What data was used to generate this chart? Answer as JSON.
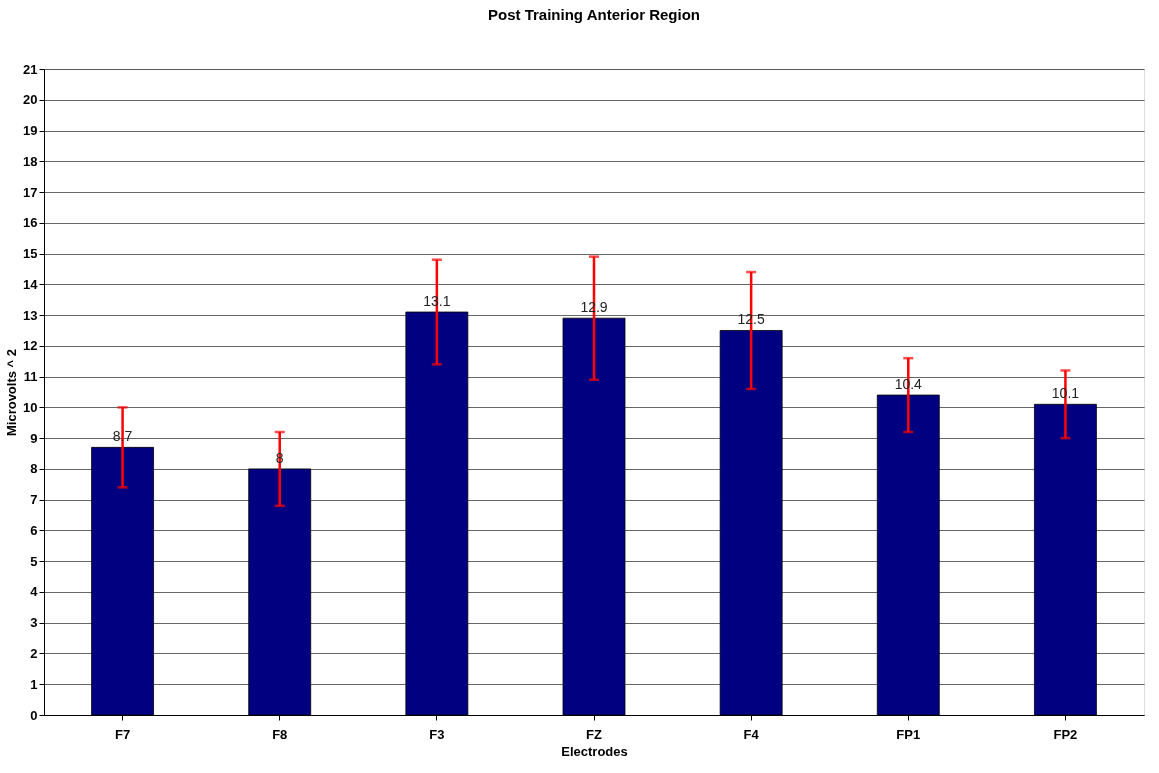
{
  "chart_data": {
    "type": "bar",
    "title": "Post Training Anterior Region",
    "xlabel": "Electrodes",
    "ylabel": "Microvolts ^ 2",
    "categories": [
      "F7",
      "F8",
      "F3",
      "FZ",
      "F4",
      "FP1",
      "FP2"
    ],
    "series": [
      {
        "color": "#000080",
        "values": [
          8.7,
          8,
          13.1,
          12.9,
          12.5,
          10.4,
          10.1
        ],
        "errors": [
          1.3,
          1.2,
          1.7,
          2.0,
          1.9,
          1.2,
          1.1
        ]
      }
    ],
    "ylim": [
      0,
      21
    ],
    "yticks": [
      0,
      1,
      2,
      3,
      4,
      5,
      6,
      7,
      8,
      9,
      10,
      11,
      12,
      13,
      14,
      15,
      16,
      17,
      18,
      19,
      20,
      21
    ],
    "grid": "y",
    "data_labels": true
  }
}
